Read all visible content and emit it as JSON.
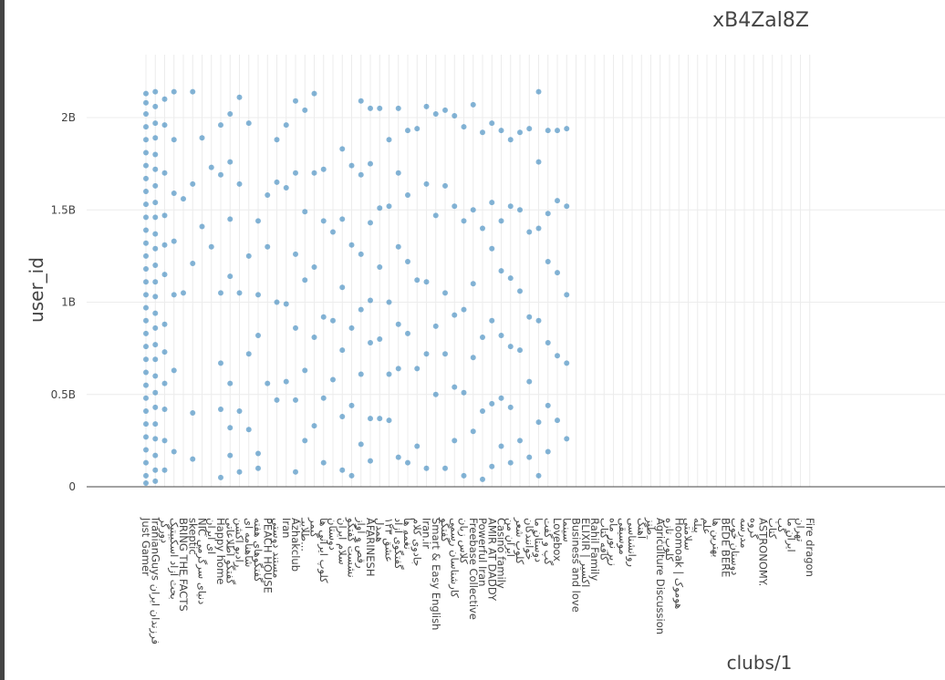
{
  "chart_data": {
    "type": "scatter",
    "title": "xB4Zal8Z",
    "xlabel": "clubs/1",
    "ylabel": "user_id",
    "ylim": [
      -120000000.0,
      2200000000.0
    ],
    "yticks": [
      {
        "value": 0,
        "label": "0"
      },
      {
        "value": 500000000,
        "label": "0.5B"
      },
      {
        "value": 1000000000,
        "label": "1B"
      },
      {
        "value": 1500000000,
        "label": "1.5B"
      },
      {
        "value": 2000000000,
        "label": "2B"
      }
    ],
    "grid": true,
    "marker_color": "#1f77b4",
    "categories": [
      "Just Gamer",
      "IranianGuys فرزندان ایران",
      "دورگر",
      "بحث آزاد اسکیپتیک",
      "BRING THE FACTS",
      "skeptic",
      "NIC دنیای سرگرمی",
      "ای ایران",
      "Happy home",
      "گفتگو اطلاعاتی",
      "رادیو اکشن",
      "شاهنامه ای",
      "گفتگوهای هفته",
      "PEACH HOUSE",
      "مستند دوستی",
      "Iran",
      "Azhakclub",
      "طلاییـ...",
      "گیمر",
      "کلوپ ایرانی ها",
      "دوستان",
      "سلام ایران",
      "نشست گفتگو",
      "رقص و آواز",
      "AFARINESH",
      "همدل",
      "۱۲۳ عشق",
      "گفتگوی آزاد",
      "نغمه ها",
      "جادوی کلام",
      "Iran.ir",
      "Smart & Easy English",
      "گفتگو",
      "کارشناسان رسمی",
      "کلاس زبان",
      "Freebase Collective",
      "Powerful Iran",
      "AMIR AT DADDY",
      "Casino family",
      "ایران من",
      "کلوپ شعر",
      "خوانندگان",
      "دوستان ما",
      "گپ و گفت",
      "Lovebox",
      "سینما",
      "Business and love",
      "ELIXIR | اکسیر",
      "Rahil Family",
      "کافه کتاب",
      "زیر نور ماه",
      "موسیقی",
      "روانشناسی",
      "آهنگ",
      "طنز",
      "Agriculture Discussion",
      "کلوپ تازه",
      "Hoomoak | هوموک",
      "سلامتی",
      "پیله",
      "علم",
      "بهترین ها",
      "BEDE BERE",
      "دوستان خوب",
      "مدرسه",
      "گروه",
      "ASTRONOMY.",
      "کتاب",
      "گپ",
      "ایران ما",
      "تهران",
      "Fire dragon"
    ],
    "series": [
      {
        "values": [
          [
            0,
            2130000000
          ],
          [
            0,
            2080000000
          ],
          [
            0,
            2020000000
          ],
          [
            0,
            1950000000
          ],
          [
            0,
            1880000000
          ],
          [
            0,
            1810000000
          ],
          [
            0,
            1740000000
          ],
          [
            0,
            1670000000
          ],
          [
            0,
            1600000000
          ],
          [
            0,
            1530000000
          ],
          [
            0,
            1460000000
          ],
          [
            0,
            1390000000
          ],
          [
            0,
            1320000000
          ],
          [
            0,
            1250000000
          ],
          [
            0,
            1180000000
          ],
          [
            0,
            1110000000
          ],
          [
            0,
            1040000000
          ],
          [
            0,
            970000000
          ],
          [
            0,
            900000000
          ],
          [
            0,
            830000000
          ],
          [
            0,
            760000000
          ],
          [
            0,
            690000000
          ],
          [
            0,
            620000000
          ],
          [
            0,
            550000000
          ],
          [
            0,
            480000000
          ],
          [
            0,
            410000000
          ],
          [
            0,
            340000000
          ],
          [
            0,
            270000000
          ],
          [
            0,
            200000000
          ],
          [
            0,
            130000000
          ],
          [
            0,
            60000000
          ],
          [
            0,
            20000000
          ],
          [
            1,
            2140000000
          ],
          [
            1,
            2060000000
          ],
          [
            1,
            1970000000
          ],
          [
            1,
            1890000000
          ],
          [
            1,
            1800000000
          ],
          [
            1,
            1720000000
          ],
          [
            1,
            1630000000
          ],
          [
            1,
            1540000000
          ],
          [
            1,
            1460000000
          ],
          [
            1,
            1370000000
          ],
          [
            1,
            1290000000
          ],
          [
            1,
            1200000000
          ],
          [
            1,
            1110000000
          ],
          [
            1,
            1030000000
          ],
          [
            1,
            940000000
          ],
          [
            1,
            860000000
          ],
          [
            1,
            770000000
          ],
          [
            1,
            690000000
          ],
          [
            1,
            600000000
          ],
          [
            1,
            510000000
          ],
          [
            1,
            430000000
          ],
          [
            1,
            340000000
          ],
          [
            1,
            260000000
          ],
          [
            1,
            170000000
          ],
          [
            1,
            90000000
          ],
          [
            1,
            30000000
          ],
          [
            2,
            2100000000
          ],
          [
            2,
            1960000000
          ],
          [
            2,
            1700000000
          ],
          [
            2,
            1470000000
          ],
          [
            2,
            1310000000
          ],
          [
            2,
            1150000000
          ],
          [
            2,
            880000000
          ],
          [
            2,
            730000000
          ],
          [
            2,
            560000000
          ],
          [
            2,
            420000000
          ],
          [
            2,
            250000000
          ],
          [
            2,
            90000000
          ],
          [
            3,
            2140000000
          ],
          [
            3,
            1880000000
          ],
          [
            3,
            1590000000
          ],
          [
            3,
            1330000000
          ],
          [
            3,
            1040000000
          ],
          [
            3,
            630000000
          ],
          [
            3,
            190000000
          ],
          [
            4,
            1560000000
          ],
          [
            4,
            1050000000
          ],
          [
            5,
            2140000000
          ],
          [
            5,
            1640000000
          ],
          [
            5,
            1210000000
          ],
          [
            5,
            400000000
          ],
          [
            5,
            150000000
          ],
          [
            6,
            1890000000
          ],
          [
            6,
            1410000000
          ],
          [
            7,
            1730000000
          ],
          [
            7,
            1300000000
          ],
          [
            8,
            1960000000
          ],
          [
            8,
            1690000000
          ],
          [
            8,
            1050000000
          ],
          [
            8,
            670000000
          ],
          [
            8,
            420000000
          ],
          [
            8,
            50000000
          ],
          [
            9,
            2020000000
          ],
          [
            9,
            1760000000
          ],
          [
            9,
            1450000000
          ],
          [
            9,
            1140000000
          ],
          [
            9,
            560000000
          ],
          [
            9,
            320000000
          ],
          [
            9,
            170000000
          ],
          [
            10,
            2110000000
          ],
          [
            10,
            1640000000
          ],
          [
            10,
            1050000000
          ],
          [
            10,
            410000000
          ],
          [
            10,
            80000000
          ],
          [
            11,
            1970000000
          ],
          [
            11,
            1250000000
          ],
          [
            11,
            720000000
          ],
          [
            11,
            310000000
          ],
          [
            12,
            1440000000
          ],
          [
            12,
            1040000000
          ],
          [
            12,
            820000000
          ],
          [
            12,
            180000000
          ],
          [
            12,
            100000000
          ],
          [
            13,
            1580000000
          ],
          [
            13,
            1300000000
          ],
          [
            13,
            560000000
          ],
          [
            14,
            1880000000
          ],
          [
            14,
            1650000000
          ],
          [
            14,
            1000000000
          ],
          [
            14,
            470000000
          ],
          [
            15,
            1960000000
          ],
          [
            15,
            1620000000
          ],
          [
            15,
            990000000
          ],
          [
            15,
            570000000
          ],
          [
            16,
            2090000000
          ],
          [
            16,
            1700000000
          ],
          [
            16,
            1260000000
          ],
          [
            16,
            860000000
          ],
          [
            16,
            470000000
          ],
          [
            16,
            80000000
          ],
          [
            17,
            2040000000
          ],
          [
            17,
            1490000000
          ],
          [
            17,
            1120000000
          ],
          [
            17,
            630000000
          ],
          [
            17,
            250000000
          ],
          [
            18,
            2130000000
          ],
          [
            18,
            1700000000
          ],
          [
            18,
            1190000000
          ],
          [
            18,
            810000000
          ],
          [
            18,
            330000000
          ],
          [
            19,
            1720000000
          ],
          [
            19,
            1440000000
          ],
          [
            19,
            920000000
          ],
          [
            19,
            480000000
          ],
          [
            19,
            130000000
          ],
          [
            20,
            1380000000
          ],
          [
            20,
            900000000
          ],
          [
            20,
            580000000
          ],
          [
            21,
            1830000000
          ],
          [
            21,
            1450000000
          ],
          [
            21,
            1080000000
          ],
          [
            21,
            740000000
          ],
          [
            21,
            380000000
          ],
          [
            21,
            90000000
          ],
          [
            22,
            1740000000
          ],
          [
            22,
            1310000000
          ],
          [
            22,
            860000000
          ],
          [
            22,
            440000000
          ],
          [
            22,
            60000000
          ],
          [
            23,
            2090000000
          ],
          [
            23,
            1690000000
          ],
          [
            23,
            1260000000
          ],
          [
            23,
            960000000
          ],
          [
            23,
            610000000
          ],
          [
            23,
            230000000
          ],
          [
            24,
            2050000000
          ],
          [
            24,
            1750000000
          ],
          [
            24,
            1430000000
          ],
          [
            24,
            1010000000
          ],
          [
            24,
            780000000
          ],
          [
            24,
            370000000
          ],
          [
            24,
            140000000
          ],
          [
            25,
            2050000000
          ],
          [
            25,
            1510000000
          ],
          [
            25,
            1190000000
          ],
          [
            25,
            800000000
          ],
          [
            25,
            370000000
          ],
          [
            26,
            1880000000
          ],
          [
            26,
            1520000000
          ],
          [
            26,
            1000000000
          ],
          [
            26,
            610000000
          ],
          [
            26,
            360000000
          ],
          [
            27,
            2050000000
          ],
          [
            27,
            1700000000
          ],
          [
            27,
            1300000000
          ],
          [
            27,
            880000000
          ],
          [
            27,
            640000000
          ],
          [
            27,
            160000000
          ],
          [
            28,
            1930000000
          ],
          [
            28,
            1580000000
          ],
          [
            28,
            1220000000
          ],
          [
            28,
            830000000
          ],
          [
            28,
            130000000
          ],
          [
            29,
            1940000000
          ],
          [
            29,
            1120000000
          ],
          [
            29,
            640000000
          ],
          [
            29,
            220000000
          ],
          [
            30,
            2060000000
          ],
          [
            30,
            1640000000
          ],
          [
            30,
            1110000000
          ],
          [
            30,
            720000000
          ],
          [
            30,
            100000000
          ],
          [
            31,
            2020000000
          ],
          [
            31,
            1470000000
          ],
          [
            31,
            870000000
          ],
          [
            31,
            500000000
          ],
          [
            32,
            2040000000
          ],
          [
            32,
            1630000000
          ],
          [
            32,
            1050000000
          ],
          [
            32,
            720000000
          ],
          [
            32,
            100000000
          ],
          [
            33,
            2010000000
          ],
          [
            33,
            1520000000
          ],
          [
            33,
            930000000
          ],
          [
            33,
            540000000
          ],
          [
            33,
            250000000
          ],
          [
            34,
            1950000000
          ],
          [
            34,
            1440000000
          ],
          [
            34,
            960000000
          ],
          [
            34,
            510000000
          ],
          [
            34,
            60000000
          ],
          [
            35,
            2070000000
          ],
          [
            35,
            1500000000
          ],
          [
            35,
            1100000000
          ],
          [
            35,
            700000000
          ],
          [
            35,
            300000000
          ],
          [
            36,
            1920000000
          ],
          [
            36,
            1400000000
          ],
          [
            36,
            810000000
          ],
          [
            36,
            410000000
          ],
          [
            36,
            40000000
          ],
          [
            37,
            1970000000
          ],
          [
            37,
            1540000000
          ],
          [
            37,
            1290000000
          ],
          [
            37,
            900000000
          ],
          [
            37,
            450000000
          ],
          [
            37,
            110000000
          ],
          [
            38,
            1930000000
          ],
          [
            38,
            1440000000
          ],
          [
            38,
            1170000000
          ],
          [
            38,
            820000000
          ],
          [
            38,
            480000000
          ],
          [
            38,
            220000000
          ],
          [
            39,
            1880000000
          ],
          [
            39,
            1520000000
          ],
          [
            39,
            1130000000
          ],
          [
            39,
            760000000
          ],
          [
            39,
            430000000
          ],
          [
            39,
            130000000
          ],
          [
            40,
            1920000000
          ],
          [
            40,
            1500000000
          ],
          [
            40,
            1060000000
          ],
          [
            40,
            740000000
          ],
          [
            40,
            250000000
          ],
          [
            41,
            1940000000
          ],
          [
            41,
            1380000000
          ],
          [
            41,
            920000000
          ],
          [
            41,
            570000000
          ],
          [
            41,
            160000000
          ],
          [
            42,
            2140000000
          ],
          [
            42,
            1760000000
          ],
          [
            42,
            1400000000
          ],
          [
            42,
            900000000
          ],
          [
            42,
            350000000
          ],
          [
            42,
            60000000
          ],
          [
            43,
            1930000000
          ],
          [
            43,
            1480000000
          ],
          [
            43,
            1220000000
          ],
          [
            43,
            780000000
          ],
          [
            43,
            440000000
          ],
          [
            43,
            190000000
          ],
          [
            44,
            1930000000
          ],
          [
            44,
            1550000000
          ],
          [
            44,
            1160000000
          ],
          [
            44,
            710000000
          ],
          [
            44,
            360000000
          ],
          [
            45,
            1940000000
          ],
          [
            45,
            1520000000
          ],
          [
            45,
            1040000000
          ],
          [
            45,
            670000000
          ],
          [
            45,
            260000000
          ]
        ]
      }
    ]
  }
}
